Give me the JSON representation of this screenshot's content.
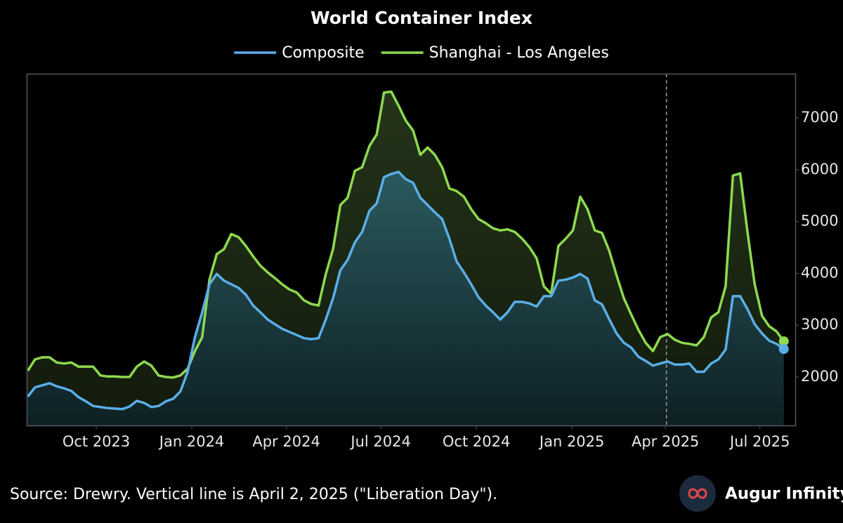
{
  "chart_data": {
    "type": "line",
    "title": "World Container Index",
    "source": "Source: Drewry. Vertical line is April 2, 2025 (\"Liberation Day\").",
    "brand": "Augur Infinity",
    "x": [
      "2023-07-27",
      "2023-08-03",
      "2023-08-10",
      "2023-08-17",
      "2023-08-24",
      "2023-08-31",
      "2023-09-07",
      "2023-09-14",
      "2023-09-21",
      "2023-09-28",
      "2023-10-05",
      "2023-10-12",
      "2023-10-19",
      "2023-10-26",
      "2023-11-02",
      "2023-11-09",
      "2023-11-16",
      "2023-11-23",
      "2023-11-30",
      "2023-12-07",
      "2023-12-14",
      "2023-12-21",
      "2023-12-28",
      "2024-01-04",
      "2024-01-11",
      "2024-01-18",
      "2024-01-25",
      "2024-02-01",
      "2024-02-08",
      "2024-02-15",
      "2024-02-22",
      "2024-02-29",
      "2024-03-07",
      "2024-03-14",
      "2024-03-21",
      "2024-03-28",
      "2024-04-04",
      "2024-04-11",
      "2024-04-18",
      "2024-04-25",
      "2024-05-02",
      "2024-05-09",
      "2024-05-16",
      "2024-05-23",
      "2024-05-30",
      "2024-06-06",
      "2024-06-13",
      "2024-06-20",
      "2024-06-27",
      "2024-07-04",
      "2024-07-11",
      "2024-07-18",
      "2024-07-25",
      "2024-08-01",
      "2024-08-08",
      "2024-08-15",
      "2024-08-22",
      "2024-08-29",
      "2024-09-05",
      "2024-09-12",
      "2024-09-19",
      "2024-09-26",
      "2024-10-03",
      "2024-10-10",
      "2024-10-17",
      "2024-10-24",
      "2024-10-31",
      "2024-11-07",
      "2024-11-14",
      "2024-11-21",
      "2024-11-28",
      "2024-12-05",
      "2024-12-12",
      "2024-12-19",
      "2024-12-26",
      "2025-01-02",
      "2025-01-09",
      "2025-01-16",
      "2025-01-23",
      "2025-01-30",
      "2025-02-06",
      "2025-02-13",
      "2025-02-20",
      "2025-02-27",
      "2025-03-06",
      "2025-03-13",
      "2025-03-20",
      "2025-03-27",
      "2025-04-03",
      "2025-04-10",
      "2025-04-17",
      "2025-04-24",
      "2025-05-01",
      "2025-05-08",
      "2025-05-15",
      "2025-05-22",
      "2025-05-29",
      "2025-06-05",
      "2025-06-12",
      "2025-06-19",
      "2025-06-26",
      "2025-07-03",
      "2025-07-10",
      "2025-07-17",
      "2025-07-24"
    ],
    "series": [
      {
        "name": "Composite",
        "color": "#5aaee8",
        "fill": "#1f4a4f",
        "values": [
          1620,
          1800,
          1840,
          1880,
          1820,
          1780,
          1730,
          1610,
          1530,
          1440,
          1420,
          1400,
          1390,
          1380,
          1430,
          1540,
          1500,
          1420,
          1440,
          1530,
          1580,
          1720,
          2100,
          2770,
          3250,
          3790,
          3990,
          3860,
          3790,
          3720,
          3590,
          3380,
          3250,
          3110,
          3020,
          2930,
          2870,
          2810,
          2750,
          2730,
          2750,
          3110,
          3520,
          4060,
          4260,
          4600,
          4800,
          5210,
          5350,
          5860,
          5920,
          5960,
          5820,
          5750,
          5460,
          5320,
          5180,
          5050,
          4670,
          4230,
          4020,
          3790,
          3540,
          3380,
          3250,
          3110,
          3250,
          3450,
          3450,
          3420,
          3360,
          3560,
          3560,
          3860,
          3880,
          3920,
          3990,
          3900,
          3480,
          3400,
          3110,
          2840,
          2660,
          2570,
          2390,
          2310,
          2220,
          2260,
          2300,
          2240,
          2240,
          2260,
          2100,
          2100,
          2260,
          2340,
          2530,
          3560,
          3560,
          3310,
          3020,
          2840,
          2700,
          2640,
          2540
        ]
      },
      {
        "name": "Shanghai - Los Angeles",
        "color": "#8ed94f",
        "fill": "#1e2b14",
        "values": [
          2120,
          2340,
          2380,
          2380,
          2280,
          2260,
          2280,
          2200,
          2200,
          2200,
          2030,
          2010,
          2010,
          2000,
          2000,
          2200,
          2300,
          2220,
          2030,
          2000,
          1990,
          2030,
          2160,
          2500,
          2770,
          3880,
          4370,
          4470,
          4760,
          4700,
          4530,
          4330,
          4150,
          4020,
          3910,
          3790,
          3690,
          3630,
          3480,
          3410,
          3380,
          3990,
          4470,
          5320,
          5460,
          5980,
          6050,
          6460,
          6680,
          7490,
          7510,
          7240,
          6950,
          6760,
          6290,
          6430,
          6290,
          6050,
          5640,
          5590,
          5480,
          5240,
          5050,
          4970,
          4870,
          4830,
          4850,
          4800,
          4670,
          4510,
          4290,
          3750,
          3610,
          4530,
          4670,
          4830,
          5480,
          5240,
          4830,
          4780,
          4430,
          3960,
          3520,
          3210,
          2910,
          2660,
          2500,
          2770,
          2830,
          2720,
          2660,
          2640,
          2610,
          2770,
          3150,
          3250,
          3750,
          5890,
          5930,
          4800,
          3790,
          3180,
          2980,
          2880,
          2690
        ]
      }
    ],
    "xlim": [
      "2023-07-26",
      "2025-08-04"
    ],
    "xticks": [
      {
        "value": "2023-10-01",
        "label": "Oct 2023"
      },
      {
        "value": "2024-01-01",
        "label": "Jan 2024"
      },
      {
        "value": "2024-04-01",
        "label": "Apr 2024"
      },
      {
        "value": "2024-07-01",
        "label": "Jul 2024"
      },
      {
        "value": "2024-10-01",
        "label": "Oct 2024"
      },
      {
        "value": "2025-01-01",
        "label": "Jan 2025"
      },
      {
        "value": "2025-04-01",
        "label": "Apr 2025"
      },
      {
        "value": "2025-07-01",
        "label": "Jul 2025"
      }
    ],
    "ylim": [
      1065,
      7855
    ],
    "yticks": [
      2000,
      3000,
      4000,
      5000,
      6000,
      7000
    ],
    "vline": "2025-04-02",
    "grid": false,
    "legend": "top"
  }
}
